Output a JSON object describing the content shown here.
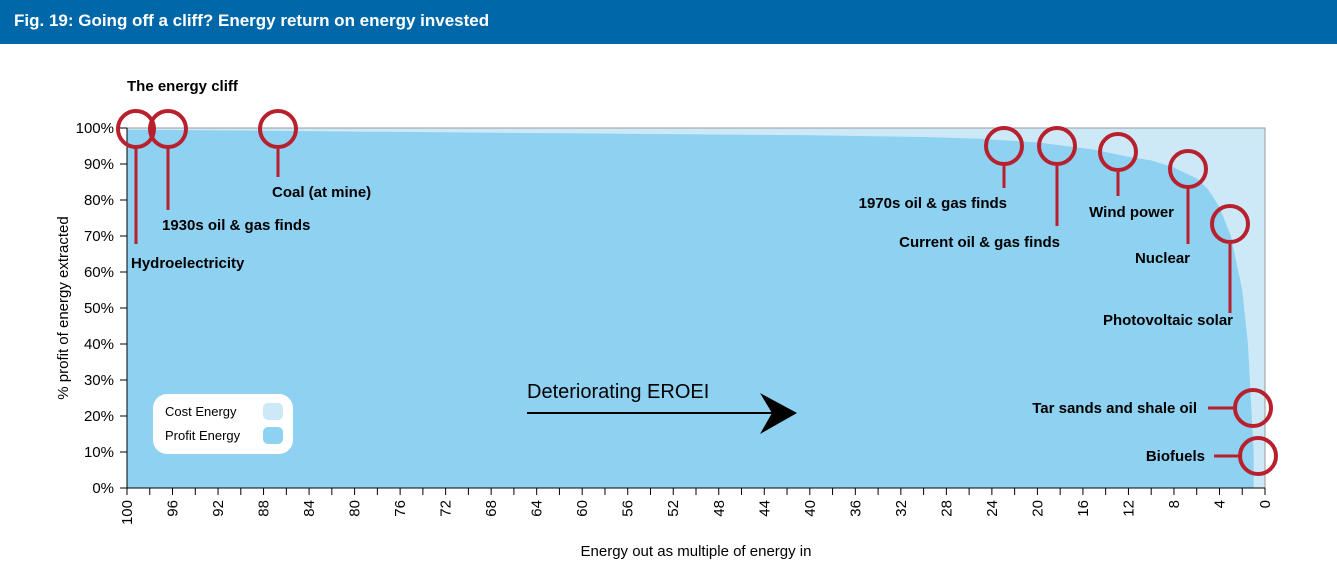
{
  "figure": {
    "title": "Fig. 19: Going off a cliff? Energy return on energy invested"
  },
  "colors": {
    "header": "#0068a8",
    "cost_energy": "#cde9f8",
    "profit_energy": "#8ed1f0",
    "marker": "#b8202e",
    "text": "#000000"
  },
  "chart_data": {
    "type": "area",
    "title": "The energy cliff",
    "xlabel": "Energy out as multiple of energy in",
    "ylabel": "% profit of energy extracted",
    "xlim": [
      100,
      0
    ],
    "ylim": [
      0,
      100
    ],
    "x_reversed": true,
    "xticks": [
      "100",
      "96",
      "92",
      "88",
      "84",
      "80",
      "76",
      "72",
      "68",
      "64",
      "60",
      "56",
      "52",
      "48",
      "44",
      "40",
      "36",
      "32",
      "28",
      "24",
      "20",
      "16",
      "12",
      "8",
      "4",
      "0"
    ],
    "yticks": [
      "0%",
      "10%",
      "20%",
      "30%",
      "40%",
      "50%",
      "60%",
      "70%",
      "80%",
      "90%",
      "100%"
    ],
    "series": [
      {
        "name": "Profit Energy",
        "x": [
          100,
          90,
          80,
          60,
          40,
          30,
          25,
          20,
          15,
          12,
          10,
          8,
          6,
          5,
          4,
          3,
          2,
          1.5,
          1
        ],
        "y": [
          99.5,
          99.3,
          99,
          98.5,
          98,
          97.5,
          97,
          96,
          94,
          92,
          91,
          89,
          86,
          83,
          78,
          70,
          55,
          40,
          10
        ]
      },
      {
        "name": "Cost Energy",
        "x": [
          100,
          0
        ],
        "y": [
          100,
          100
        ]
      }
    ],
    "legend": {
      "position": "bottom-left",
      "entries": [
        "Cost Energy",
        "Profit Energy"
      ]
    },
    "annotations": [
      {
        "label": "Hydroelectricity",
        "x": 100,
        "y": 100
      },
      {
        "label": "1930s oil & gas finds",
        "x": 95,
        "y": 100
      },
      {
        "label": "Coal (at mine)",
        "x": 80,
        "y": 100
      },
      {
        "label": "1970s oil & gas finds",
        "x": 18,
        "y": 95
      },
      {
        "label": "Current oil & gas finds",
        "x": 15,
        "y": 94
      },
      {
        "label": "Wind power",
        "x": 10,
        "y": 92
      },
      {
        "label": "Nuclear",
        "x": 6,
        "y": 89
      },
      {
        "label": "Photovoltaic solar",
        "x": 3,
        "y": 75
      },
      {
        "label": "Tar sands and shale oil",
        "x": 1.5,
        "y": 22
      },
      {
        "label": "Biofuels",
        "x": 1,
        "y": 8
      }
    ],
    "arrow_label": "Deteriorating EROEI"
  }
}
